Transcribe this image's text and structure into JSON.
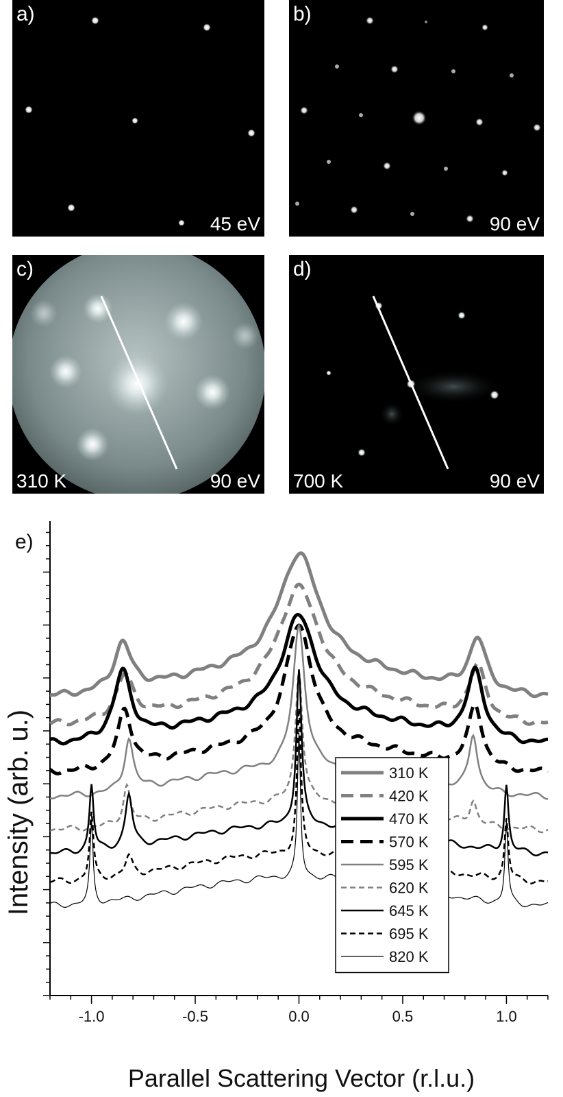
{
  "panels": [
    {
      "label": "a)",
      "energy": "45 eV",
      "temp": ""
    },
    {
      "label": "b)",
      "energy": "90 eV",
      "temp": ""
    },
    {
      "label": "c)",
      "energy": "90 eV",
      "temp": "310 K"
    },
    {
      "label": "d)",
      "energy": "90 eV",
      "temp": "700 K"
    }
  ],
  "chart_data": {
    "type": "line",
    "panel_label": "e)",
    "xlabel": "Parallel Scattering Vector (r.l.u.)",
    "ylabel": "Intensity (arb. u.)",
    "xlim": [
      -1.2,
      1.2
    ],
    "x_ticks": [
      "-1.0",
      "-0.5",
      "0.0",
      "0.5",
      "1.0"
    ],
    "series": [
      {
        "name": "310 K",
        "baseline": 0.66,
        "peaks": [
          [
            -0.85,
            0.1,
            0.05
          ],
          [
            0.0,
            0.24,
            0.12
          ],
          [
            0.86,
            0.11,
            0.05
          ]
        ],
        "color": "#808080",
        "dash": "solid",
        "width": 5
      },
      {
        "name": "420 K",
        "baseline": 0.6,
        "peaks": [
          [
            -0.84,
            0.09,
            0.05
          ],
          [
            0.0,
            0.23,
            0.12
          ],
          [
            0.86,
            0.11,
            0.05
          ]
        ],
        "color": "#808080",
        "dash": "dashed",
        "width": 5
      },
      {
        "name": "470 K",
        "baseline": 0.56,
        "peaks": [
          [
            -0.85,
            0.14,
            0.05
          ],
          [
            0.0,
            0.21,
            0.1
          ],
          [
            0.85,
            0.14,
            0.05
          ]
        ],
        "color": "#000000",
        "dash": "solid",
        "width": 5
      },
      {
        "name": "570 K",
        "baseline": 0.5,
        "peaks": [
          [
            -0.84,
            0.12,
            0.04
          ],
          [
            0.0,
            0.25,
            0.08
          ],
          [
            0.85,
            0.13,
            0.04
          ]
        ],
        "color": "#000000",
        "dash": "dashed",
        "width": 5
      },
      {
        "name": "595 K",
        "baseline": 0.45,
        "peaks": [
          [
            -0.82,
            0.11,
            0.025
          ],
          [
            0.0,
            0.3,
            0.035
          ],
          [
            0.84,
            0.12,
            0.025
          ]
        ],
        "color": "#808080",
        "dash": "solid",
        "width": 2.5
      },
      {
        "name": "620 K",
        "baseline": 0.38,
        "peaks": [
          [
            -0.83,
            0.08,
            0.02
          ],
          [
            0.0,
            0.28,
            0.02
          ],
          [
            0.84,
            0.05,
            0.02
          ]
        ],
        "color": "#808080",
        "dash": "dashed",
        "width": 2.5
      },
      {
        "name": "645 K",
        "baseline": 0.33,
        "peaks": [
          [
            -1.0,
            0.14,
            0.012
          ],
          [
            -0.82,
            0.11,
            0.02
          ],
          [
            0.0,
            0.33,
            0.015
          ],
          [
            1.0,
            0.14,
            0.012
          ]
        ],
        "color": "#000000",
        "dash": "solid",
        "width": 2.5
      },
      {
        "name": "695 K",
        "baseline": 0.27,
        "peaks": [
          [
            -1.0,
            0.14,
            0.011
          ],
          [
            -0.82,
            0.04,
            0.02
          ],
          [
            0.0,
            0.3,
            0.012
          ],
          [
            1.0,
            0.13,
            0.011
          ]
        ],
        "color": "#000000",
        "dash": "dashed",
        "width": 2.5
      },
      {
        "name": "820 K",
        "baseline": 0.22,
        "peaks": [
          [
            -1.0,
            0.17,
            0.009
          ],
          [
            0.0,
            0.3,
            0.009
          ],
          [
            1.0,
            0.17,
            0.009
          ]
        ],
        "color": "#000000",
        "dash": "solid",
        "width": 1.2
      }
    ]
  }
}
